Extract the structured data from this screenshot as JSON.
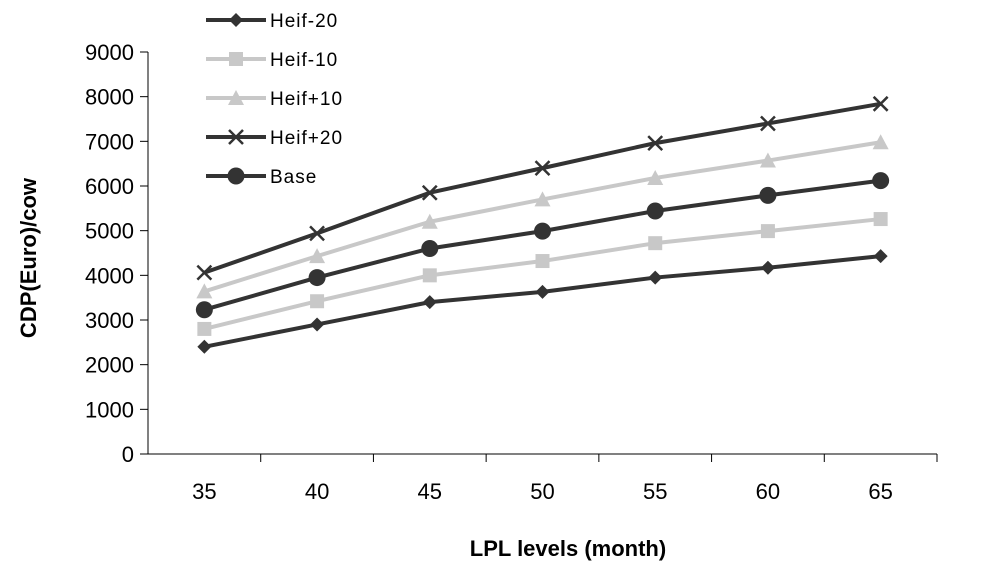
{
  "chart_data": {
    "type": "line",
    "title": "",
    "xlabel": "LPL levels (month)",
    "ylabel": "CDP(Euro)/cow",
    "categories": [
      "35",
      "40",
      "45",
      "50",
      "55",
      "60",
      "65"
    ],
    "ylim": [
      0,
      9000
    ],
    "yticks": [
      "0",
      "1000",
      "2000",
      "3000",
      "4000",
      "5000",
      "6000",
      "7000",
      "8000",
      "9000"
    ],
    "grid": false,
    "legend_position": "top-left",
    "series": [
      {
        "name": "Heif-20",
        "marker": "diamond",
        "color": "#333333",
        "values": [
          2400,
          2900,
          3400,
          3630,
          3950,
          4170,
          4430
        ]
      },
      {
        "name": "Heif-10",
        "marker": "square",
        "color": "#c8c8c8",
        "values": [
          2800,
          3420,
          4000,
          4320,
          4720,
          4990,
          5260
        ]
      },
      {
        "name": "Heif+10",
        "marker": "triangle",
        "color": "#c8c8c8",
        "values": [
          3640,
          4430,
          5200,
          5700,
          6180,
          6570,
          6980
        ]
      },
      {
        "name": "Heif+20",
        "marker": "cross",
        "color": "#333333",
        "values": [
          4060,
          4940,
          5850,
          6400,
          6960,
          7400,
          7840
        ]
      },
      {
        "name": "Base",
        "marker": "circle",
        "color": "#333333",
        "values": [
          3230,
          3950,
          4600,
          4990,
          5440,
          5790,
          6120
        ]
      }
    ]
  }
}
